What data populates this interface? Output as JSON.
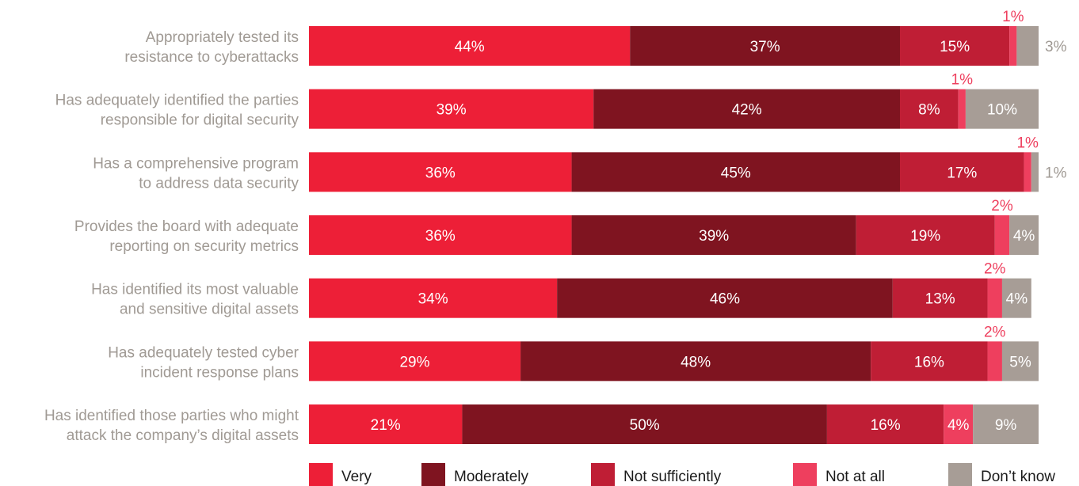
{
  "chart_data": {
    "type": "bar",
    "orientation": "horizontal",
    "stacked": true,
    "categories": [
      [
        "Appropriately tested its",
        "resistance to cyberattacks"
      ],
      [
        "Has adequately identified the parties",
        "responsible for digital security"
      ],
      [
        "Has a comprehensive program",
        "to address data security"
      ],
      [
        "Provides the board with adequate",
        "reporting on security metrics"
      ],
      [
        "Has identified its most valuable",
        "and sensitive digital assets"
      ],
      [
        "Has adequately tested cyber",
        "incident response plans"
      ],
      [
        "Has identified those parties who might",
        "attack the company’s digital assets"
      ]
    ],
    "series": [
      {
        "name": "Very",
        "color": "#ed1f37",
        "values": [
          44,
          39,
          36,
          36,
          34,
          29,
          21
        ]
      },
      {
        "name": "Moderately",
        "color": "#7f1420",
        "values": [
          37,
          42,
          45,
          39,
          46,
          48,
          50
        ]
      },
      {
        "name": "Not sufficiently",
        "color": "#bf1e35",
        "values": [
          15,
          8,
          17,
          19,
          13,
          16,
          16
        ]
      },
      {
        "name": "Not at all",
        "color": "#ee3f5e",
        "values": [
          1,
          1,
          1,
          2,
          2,
          2,
          4
        ]
      },
      {
        "name": "Don’t know",
        "color": "#a79d96",
        "values": [
          3,
          10,
          1,
          4,
          4,
          5,
          9
        ]
      }
    ],
    "value_suffix": "%",
    "xlim": [
      0,
      100
    ],
    "grid": false,
    "legend": "bottom",
    "title": "",
    "xlabel": "",
    "ylabel": ""
  }
}
